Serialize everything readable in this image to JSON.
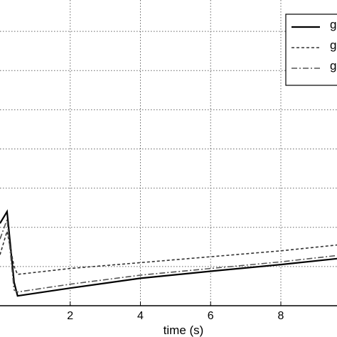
{
  "chart_data": {
    "type": "line",
    "title": "",
    "xlabel": "time (s)",
    "ylabel": "",
    "xlim": [
      0.0,
      9.6
    ],
    "ylim": [
      0.0,
      7.8
    ],
    "xticks": [
      2,
      4,
      6,
      8
    ],
    "xtick_labels": [
      "2",
      "4",
      "6",
      "8"
    ],
    "grid": true,
    "legend_position": "top-right",
    "legend_entries": [
      "g",
      "g",
      "g"
    ],
    "series": [
      {
        "name": "g",
        "style": "solid",
        "color": "#000000",
        "x": [
          0.0,
          0.2,
          0.4,
          0.5,
          2.0,
          4.0,
          6.0,
          8.0,
          9.6
        ],
        "y": [
          2.1,
          2.4,
          0.6,
          0.25,
          0.45,
          0.7,
          0.88,
          1.05,
          1.2
        ]
      },
      {
        "name": "g",
        "style": "dashed",
        "color": "#333333",
        "x": [
          0.0,
          0.2,
          0.4,
          0.5,
          2.0,
          4.0,
          6.0,
          8.0,
          9.6
        ],
        "y": [
          1.3,
          1.9,
          1.0,
          0.8,
          0.95,
          1.1,
          1.25,
          1.4,
          1.55
        ]
      },
      {
        "name": "g",
        "style": "dashdot",
        "color": "#555555",
        "x": [
          0.0,
          0.2,
          0.4,
          0.5,
          2.0,
          4.0,
          6.0,
          8.0,
          9.6
        ],
        "y": [
          1.7,
          2.2,
          0.4,
          0.35,
          0.55,
          0.78,
          0.95,
          1.12,
          1.28
        ]
      }
    ]
  }
}
